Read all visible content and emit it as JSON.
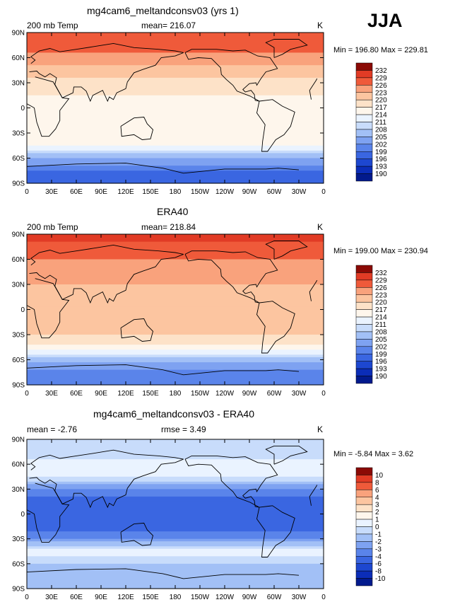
{
  "season": "JJA",
  "y_ticks": [
    "90N",
    "60N",
    "30N",
    "0",
    "30S",
    "60S",
    "90S"
  ],
  "x_ticks": [
    "0",
    "30E",
    "60E",
    "90E",
    "120E",
    "150E",
    "180",
    "150W",
    "120W",
    "90W",
    "60W",
    "30W",
    "0"
  ],
  "colors": {
    "warm": [
      "#fef6ec",
      "#fde2c8",
      "#fcc5a0",
      "#f9a27c",
      "#f57f5a",
      "#ef5a3a",
      "#e13b25",
      "#c6251a",
      "#8b0a05"
    ],
    "cool": [
      "#eaf3ff",
      "#c8dcfb",
      "#a2c0f6",
      "#7ea2f1",
      "#5a84ea",
      "#3a66e1",
      "#1d47d0",
      "#0b2db8",
      "#021a8d"
    ],
    "coast": "#000000"
  },
  "panels": [
    {
      "title": "mg4cam6_meltandconsv03 (yrs 1)",
      "left_label": "200 mb Temp",
      "center_label": "mean=  216.07",
      "right_label": "K",
      "min_max": "Min =  196.80  Max =  229.81"
    },
    {
      "title": "ERA40",
      "left_label": "200 mb Temp",
      "center_label": "mean=  218.84",
      "right_label": "K",
      "min_max": "Min =  199.00  Max =  230.94"
    },
    {
      "title": "mg4cam6_meltandconsv03 - ERA40",
      "left_label": "mean =   -2.76",
      "center_label": "rmse =    3.49",
      "right_label": "K",
      "min_max": "Min =   -5.84  Max =     3.62"
    }
  ],
  "chart_data": [
    {
      "type": "heatmap",
      "title": "mg4cam6_meltandconsv03 (yrs 1)",
      "variable": "200 mb Temp",
      "units": "K",
      "mean": 216.07,
      "min": 196.8,
      "max": 229.81,
      "xlim": [
        0,
        360
      ],
      "ylim": [
        -90,
        90
      ],
      "color_levels": [
        190,
        193,
        196,
        199,
        202,
        205,
        208,
        211,
        214,
        217,
        220,
        223,
        226,
        229,
        232
      ],
      "level_labels": [
        "232",
        "229",
        "226",
        "223",
        "220",
        "217",
        "214",
        "211",
        "208",
        "205",
        "202",
        "199",
        "196",
        "193",
        "190"
      ],
      "zonal_profile": {
        "lat": [
          90,
          75,
          60,
          45,
          30,
          15,
          0,
          -15,
          -30,
          -45,
          -60,
          -75,
          -90
        ],
        "value": [
          229,
          227,
          225,
          222,
          219,
          217,
          216,
          216,
          217,
          214,
          205,
          199,
          197
        ]
      }
    },
    {
      "type": "heatmap",
      "title": "ERA40",
      "variable": "200 mb Temp",
      "units": "K",
      "mean": 218.84,
      "min": 199.0,
      "max": 230.94,
      "xlim": [
        0,
        360
      ],
      "ylim": [
        -90,
        90
      ],
      "color_levels": [
        190,
        193,
        196,
        199,
        202,
        205,
        208,
        211,
        214,
        217,
        220,
        223,
        226,
        229,
        232
      ],
      "level_labels": [
        "232",
        "229",
        "226",
        "223",
        "220",
        "217",
        "214",
        "211",
        "208",
        "205",
        "202",
        "199",
        "196",
        "193",
        "190"
      ],
      "zonal_profile": {
        "lat": [
          90,
          75,
          60,
          45,
          30,
          15,
          0,
          -15,
          -30,
          -45,
          -60,
          -75,
          -90
        ],
        "value": [
          230,
          228,
          226,
          224,
          223,
          221,
          220,
          220,
          220,
          216,
          206,
          201,
          200
        ]
      }
    },
    {
      "type": "heatmap",
      "title": "mg4cam6_meltandconsv03 - ERA40",
      "units": "K",
      "mean": -2.76,
      "rmse": 3.49,
      "min": -5.84,
      "max": 3.62,
      "xlim": [
        0,
        360
      ],
      "ylim": [
        -90,
        90
      ],
      "color_levels": [
        -10,
        -8,
        -6,
        -4,
        -3,
        -2,
        -1,
        0,
        1,
        2,
        3,
        4,
        6,
        8,
        10
      ],
      "level_labels": [
        "10",
        "8",
        "6",
        "4",
        "3",
        "2",
        "1",
        "0",
        "-1",
        "-2",
        "-3",
        "-4",
        "-6",
        "-8",
        "-10"
      ],
      "zonal_profile": {
        "lat": [
          90,
          75,
          60,
          45,
          30,
          15,
          0,
          -15,
          -30,
          -45,
          -60,
          -75,
          -90
        ],
        "value": [
          -0.5,
          -1,
          0.5,
          0,
          -3,
          -4.5,
          -5,
          -4.5,
          -3,
          0.5,
          -1,
          -2,
          -2
        ]
      }
    }
  ]
}
